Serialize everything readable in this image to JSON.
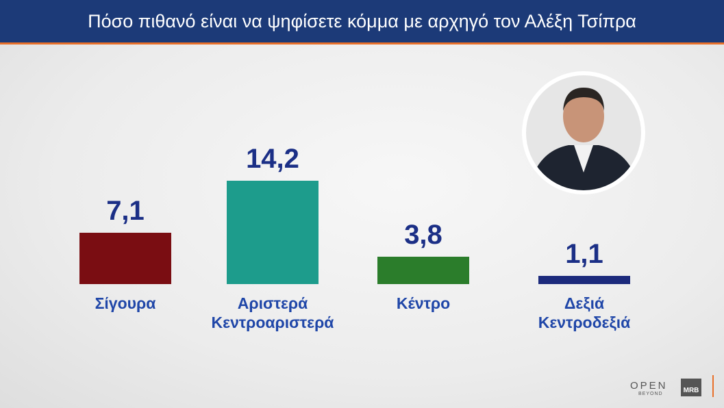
{
  "chart_data": {
    "type": "bar",
    "title": "Πόσο πιθανό είναι να ψηφίσετε κόμμα με αρχηγό τον Αλέξη Τσίπρα",
    "categories": [
      "Σίγουρα",
      "Αριστερά\nΚεντροαριστερά",
      "Κέντρο",
      "Δεξιά\nΚεντροδεξιά"
    ],
    "values": [
      7.1,
      14.2,
      3.8,
      1.1
    ],
    "value_labels": [
      "7,1",
      "14,2",
      "3,8",
      "1,1"
    ],
    "colors": [
      "#7a0d12",
      "#1d9c8c",
      "#2b7d2b",
      "#1c2a7c"
    ]
  },
  "logos": {
    "open": "OPEN",
    "beyond": "BEYOND",
    "mrb": "MRB"
  }
}
